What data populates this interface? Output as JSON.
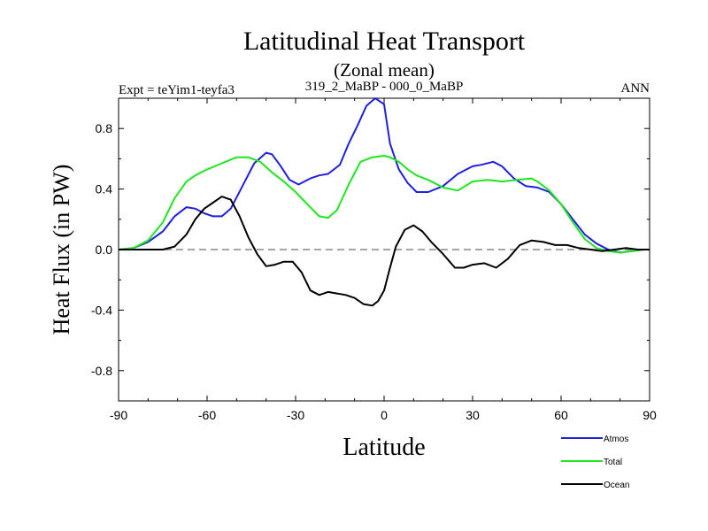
{
  "chart_data": {
    "type": "line",
    "title": "Latitudinal Heat Transport",
    "subtitle": "(Zonal mean)",
    "left_label": "Expt = teYim1-teyfa3",
    "center_label": "319_2_MaBP - 000_0_MaBP",
    "right_label": "ANN",
    "xlabel": "Latitude",
    "ylabel": "Heat Flux (in PW)",
    "xlim": [
      -90,
      90
    ],
    "ylim": [
      -1.0,
      1.0
    ],
    "x_ticks": [
      -90,
      -60,
      -30,
      0,
      30,
      60,
      90
    ],
    "x_tick_labels": [
      "-90",
      "-60",
      "-30",
      "0",
      "30",
      "60",
      "90"
    ],
    "y_ticks": [
      -0.8,
      -0.4,
      0.0,
      0.4,
      0.8
    ],
    "y_tick_labels": [
      "-0.8",
      "-0.4",
      "0.0",
      "0.4",
      "0.8"
    ],
    "reference_line": 0.0,
    "series": [
      {
        "name": "Atmos",
        "color": "#1f1fe0",
        "x": [
          -90,
          -85,
          -80,
          -75,
          -71,
          -67,
          -64,
          -61,
          -58,
          -55,
          -52,
          -48,
          -44,
          -40,
          -38,
          -35,
          -32,
          -29,
          -25,
          -22,
          -19,
          -15,
          -12,
          -9,
          -6,
          -3,
          0,
          2,
          5,
          8,
          11,
          15,
          20,
          25,
          30,
          33,
          37,
          40,
          44,
          48,
          52,
          56,
          60,
          64,
          68,
          72,
          76,
          80,
          84,
          88,
          90
        ],
        "values": [
          0.0,
          0.01,
          0.05,
          0.12,
          0.22,
          0.28,
          0.27,
          0.24,
          0.22,
          0.22,
          0.27,
          0.42,
          0.57,
          0.64,
          0.63,
          0.55,
          0.46,
          0.43,
          0.47,
          0.49,
          0.5,
          0.56,
          0.7,
          0.82,
          0.95,
          1.0,
          0.96,
          0.7,
          0.53,
          0.44,
          0.38,
          0.38,
          0.42,
          0.5,
          0.55,
          0.56,
          0.58,
          0.55,
          0.47,
          0.42,
          0.41,
          0.38,
          0.3,
          0.2,
          0.1,
          0.04,
          0.0,
          -0.02,
          -0.01,
          0.0,
          0.0
        ],
        "legend_label": "Atmos"
      },
      {
        "name": "Total",
        "color": "#1ee61e",
        "x": [
          -90,
          -85,
          -80,
          -75,
          -71,
          -67,
          -64,
          -60,
          -55,
          -50,
          -46,
          -42,
          -38,
          -34,
          -30,
          -26,
          -22,
          -19,
          -16,
          -12,
          -8,
          -4,
          0,
          2,
          5,
          8,
          11,
          15,
          20,
          25,
          30,
          35,
          40,
          45,
          50,
          52,
          56,
          60,
          64,
          68,
          72,
          76,
          80,
          84,
          88,
          90
        ],
        "values": [
          0.0,
          0.01,
          0.06,
          0.18,
          0.34,
          0.45,
          0.49,
          0.53,
          0.57,
          0.61,
          0.61,
          0.58,
          0.51,
          0.45,
          0.38,
          0.3,
          0.22,
          0.21,
          0.26,
          0.43,
          0.58,
          0.61,
          0.62,
          0.61,
          0.58,
          0.53,
          0.49,
          0.46,
          0.41,
          0.39,
          0.45,
          0.46,
          0.45,
          0.46,
          0.47,
          0.45,
          0.39,
          0.3,
          0.18,
          0.07,
          0.01,
          -0.01,
          -0.02,
          -0.01,
          0.0,
          0.0
        ],
        "legend_label": "Total"
      },
      {
        "name": "Ocean",
        "color": "#000000",
        "x": [
          -90,
          -85,
          -80,
          -75,
          -71,
          -67,
          -64,
          -61,
          -58,
          -55,
          -52,
          -49,
          -46,
          -43,
          -40,
          -37,
          -34,
          -31,
          -28,
          -25,
          -22,
          -19,
          -16,
          -13,
          -10,
          -7,
          -4,
          -2,
          0,
          2,
          4,
          7,
          10,
          13,
          16,
          20,
          24,
          27,
          30,
          34,
          38,
          42,
          46,
          50,
          54,
          58,
          62,
          66,
          70,
          74,
          78,
          82,
          86,
          90
        ],
        "values": [
          0.0,
          0.0,
          0.0,
          0.0,
          0.02,
          0.1,
          0.2,
          0.27,
          0.31,
          0.35,
          0.33,
          0.22,
          0.08,
          -0.03,
          -0.11,
          -0.1,
          -0.08,
          -0.08,
          -0.15,
          -0.27,
          -0.3,
          -0.28,
          -0.29,
          -0.3,
          -0.32,
          -0.36,
          -0.37,
          -0.34,
          -0.27,
          -0.12,
          0.02,
          0.13,
          0.16,
          0.12,
          0.05,
          -0.03,
          -0.12,
          -0.12,
          -0.1,
          -0.09,
          -0.12,
          -0.06,
          0.03,
          0.06,
          0.05,
          0.03,
          0.03,
          0.01,
          0.0,
          -0.01,
          0.0,
          0.01,
          0.0,
          0.0
        ],
        "legend_label": "Ocean"
      }
    ]
  }
}
